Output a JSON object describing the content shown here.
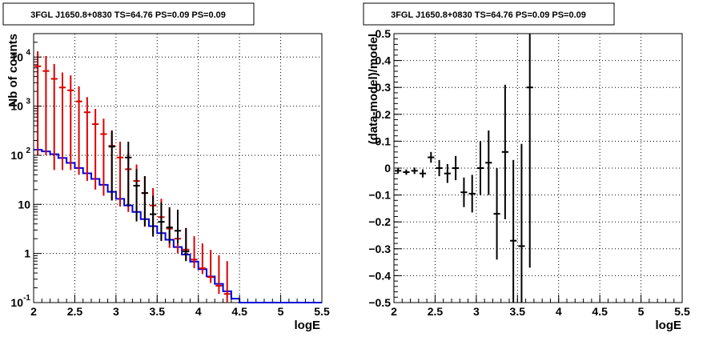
{
  "chart_data": [
    {
      "type": "line",
      "title": "3FGL J1650.8+0830 TS=64.76 PS=0.09 PS=0.09",
      "xlabel": "logE",
      "ylabel": "Nb of counts",
      "xlim": [
        2,
        5.5
      ],
      "ylim": [
        0.1,
        30000
      ],
      "yscale": "log",
      "grid": true,
      "xticks": [
        "2",
        "2.5",
        "3",
        "3.5",
        "4",
        "4.5",
        "5",
        "5.5"
      ],
      "yticks": [
        {
          "value": 0.1,
          "label": "10",
          "exp": "-1"
        },
        {
          "value": 1,
          "label": "1",
          "exp": ""
        },
        {
          "value": 10,
          "label": "10",
          "exp": ""
        },
        {
          "value": 100,
          "label": "10",
          "exp": "2"
        },
        {
          "value": 1000,
          "label": "10",
          "exp": "3"
        },
        {
          "value": 10000,
          "label": "10",
          "exp": "4"
        }
      ],
      "bin_width": 0.1,
      "series": [
        {
          "color": "#0000dd",
          "style": "step",
          "x": [
            2.05,
            2.15,
            2.25,
            2.35,
            2.45,
            2.55,
            2.65,
            2.75,
            2.85,
            2.95,
            3.05,
            3.15,
            3.25,
            3.35,
            3.45,
            3.55,
            3.65,
            3.75,
            3.85,
            3.95,
            4.05,
            4.15,
            4.25,
            4.35,
            4.45,
            4.55,
            4.65,
            4.75,
            4.85,
            4.95,
            5.05,
            5.15,
            5.25,
            5.35,
            5.45
          ],
          "y": [
            130,
            120,
            105,
            88,
            70,
            55,
            43,
            33,
            25,
            18,
            13,
            9.5,
            7,
            5,
            3.6,
            2.6,
            1.9,
            1.35,
            0.95,
            0.68,
            0.48,
            0.34,
            0.24,
            0.17,
            0.12,
            0.1,
            0.1,
            0.1,
            0.1,
            0.1,
            0.1,
            0.1,
            0.1,
            0.1,
            0.1
          ]
        },
        {
          "color": "#dd0000",
          "style": "errorbar",
          "x": [
            2.05,
            2.15,
            2.25,
            2.35,
            2.45,
            2.55,
            2.65,
            2.75,
            2.85,
            2.95,
            3.05,
            3.15,
            3.25,
            3.35,
            3.45,
            3.55,
            3.65,
            3.75,
            3.85,
            3.95,
            4.05,
            4.15,
            4.25,
            4.35
          ],
          "y": [
            6500,
            5200,
            3600,
            2400,
            2100,
            1250,
            750,
            430,
            270,
            155,
            90,
            52,
            30,
            17,
            9.5,
            5.5,
            3.2,
            2.0,
            1.2,
            0.75,
            0.5,
            0.33,
            0.22,
            0.15
          ],
          "err_low": [
            6400,
            5100,
            3550,
            2350,
            2050,
            1210,
            720,
            410,
            255,
            143,
            81,
            45,
            25,
            13.5,
            7,
            3.7,
            1.9,
            1.0,
            0.5,
            0.25,
            0.12,
            0.08,
            0.07,
            0.05
          ],
          "err_high": [
            6600,
            5300,
            3650,
            2450,
            2150,
            1290,
            780,
            450,
            285,
            167,
            99,
            59,
            35,
            20.5,
            12,
            7.5,
            4.8,
            3.2,
            2.1,
            1.5,
            1.1,
            0.85,
            0.7,
            0.55
          ]
        },
        {
          "color": "#000000",
          "style": "errorbar",
          "x": [
            2.95,
            3.15,
            3.25,
            3.35,
            3.45,
            3.55,
            3.65,
            3.75,
            3.85
          ],
          "y": [
            150,
            90,
            24,
            17,
            6.3,
            4.4,
            3.4,
            2.9,
            1.1
          ],
          "err_low": [
            138,
            81,
            19.5,
            13.4,
            4.1,
            2.6,
            1.8,
            1.3,
            0.4
          ],
          "err_high": [
            162,
            99,
            28.5,
            20.6,
            8.8,
            6.6,
            5.4,
            4.9,
            2.2
          ]
        }
      ]
    },
    {
      "type": "scatter",
      "title": "3FGL J1650.8+0830 TS=64.76 PS=0.09 PS=0.09",
      "xlabel": "logE",
      "ylabel": "(data-model)/model",
      "xlim": [
        2,
        5.5
      ],
      "ylim": [
        -0.5,
        0.5
      ],
      "grid": true,
      "xticks": [
        "2",
        "2.5",
        "3",
        "3.5",
        "4",
        "4.5",
        "5",
        "5.5"
      ],
      "yticks": [
        "-0.5",
        "-0.4",
        "-0.3",
        "-0.2",
        "-0.1",
        "0",
        "0.1",
        "0.2",
        "0.3",
        "0.4",
        "0.5"
      ],
      "bin_width": 0.1,
      "series": [
        {
          "color": "#000000",
          "style": "errorbar",
          "x": [
            2.05,
            2.15,
            2.25,
            2.35,
            2.45,
            2.55,
            2.65,
            2.75,
            2.85,
            2.95,
            3.05,
            3.15,
            3.25,
            3.35,
            3.45,
            3.55,
            3.65
          ],
          "y": [
            -0.01,
            -0.015,
            -0.01,
            -0.02,
            0.04,
            0.0,
            -0.02,
            0.0,
            -0.09,
            -0.095,
            0.0,
            0.02,
            -0.17,
            0.06,
            -0.27,
            -0.29,
            0.3
          ],
          "err": [
            0.01,
            0.01,
            0.012,
            0.015,
            0.02,
            0.03,
            0.035,
            0.045,
            0.055,
            0.07,
            0.1,
            0.12,
            0.17,
            0.25,
            0.3,
            0.38,
            0.67
          ]
        }
      ]
    }
  ]
}
